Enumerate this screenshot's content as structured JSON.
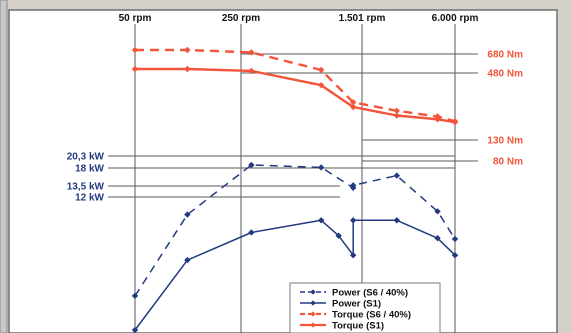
{
  "chart_data": {
    "type": "line",
    "title": "",
    "xlabel": "",
    "ylabel": "",
    "x_ticks": [
      "50 rpm",
      "250 rpm",
      "1.501 rpm",
      "6.000 rpm"
    ],
    "power_axis_labels": [
      "20,3 kW",
      "18 kW",
      "13,5 kW",
      "12 kW"
    ],
    "torque_axis_labels": [
      "680 Nm",
      "480 Nm",
      "130 Nm",
      "80 Nm"
    ],
    "colors": {
      "power": "#223a80",
      "torque": "#f2553a",
      "frame": "#7f7f7f",
      "window": "#d4d0c8"
    },
    "grid": "reference lines at labelled values",
    "legend_position": "bottom-right",
    "series": [
      {
        "name": "Power (S6 / 40%)",
        "axis": "power",
        "dashed": true,
        "points": [
          [
            0.0,
            4.2
          ],
          [
            0.09,
            14.2
          ],
          [
            0.2,
            20.3
          ],
          [
            0.32,
            20.0
          ],
          [
            0.375,
            17.5
          ],
          [
            0.375,
            17.8
          ],
          [
            0.45,
            19.0
          ],
          [
            0.52,
            14.6
          ],
          [
            0.55,
            11.2
          ]
        ]
      },
      {
        "name": "Power (S1)",
        "axis": "power",
        "dashed": false,
        "points": [
          [
            0.0,
            0.0
          ],
          [
            0.09,
            8.6
          ],
          [
            0.2,
            12.0
          ],
          [
            0.32,
            13.5
          ],
          [
            0.35,
            11.6
          ],
          [
            0.375,
            9.2
          ],
          [
            0.375,
            13.5
          ],
          [
            0.45,
            13.5
          ],
          [
            0.52,
            11.3
          ],
          [
            0.55,
            9.2
          ]
        ]
      },
      {
        "name": "Torque (S6 / 40%)",
        "axis": "torque",
        "dashed": true,
        "points": [
          [
            0.0,
            680
          ],
          [
            0.09,
            680
          ],
          [
            0.2,
            655
          ],
          [
            0.32,
            470
          ],
          [
            0.375,
            130
          ],
          [
            0.45,
            40
          ],
          [
            0.52,
            -20
          ],
          [
            0.55,
            -70
          ]
        ]
      },
      {
        "name": "Torque (S1)",
        "axis": "torque",
        "dashed": false,
        "points": [
          [
            0.0,
            480
          ],
          [
            0.09,
            480
          ],
          [
            0.2,
            460
          ],
          [
            0.32,
            310
          ],
          [
            0.375,
            80
          ],
          [
            0.45,
            -10
          ],
          [
            0.52,
            -50
          ],
          [
            0.55,
            -80
          ]
        ]
      }
    ]
  }
}
